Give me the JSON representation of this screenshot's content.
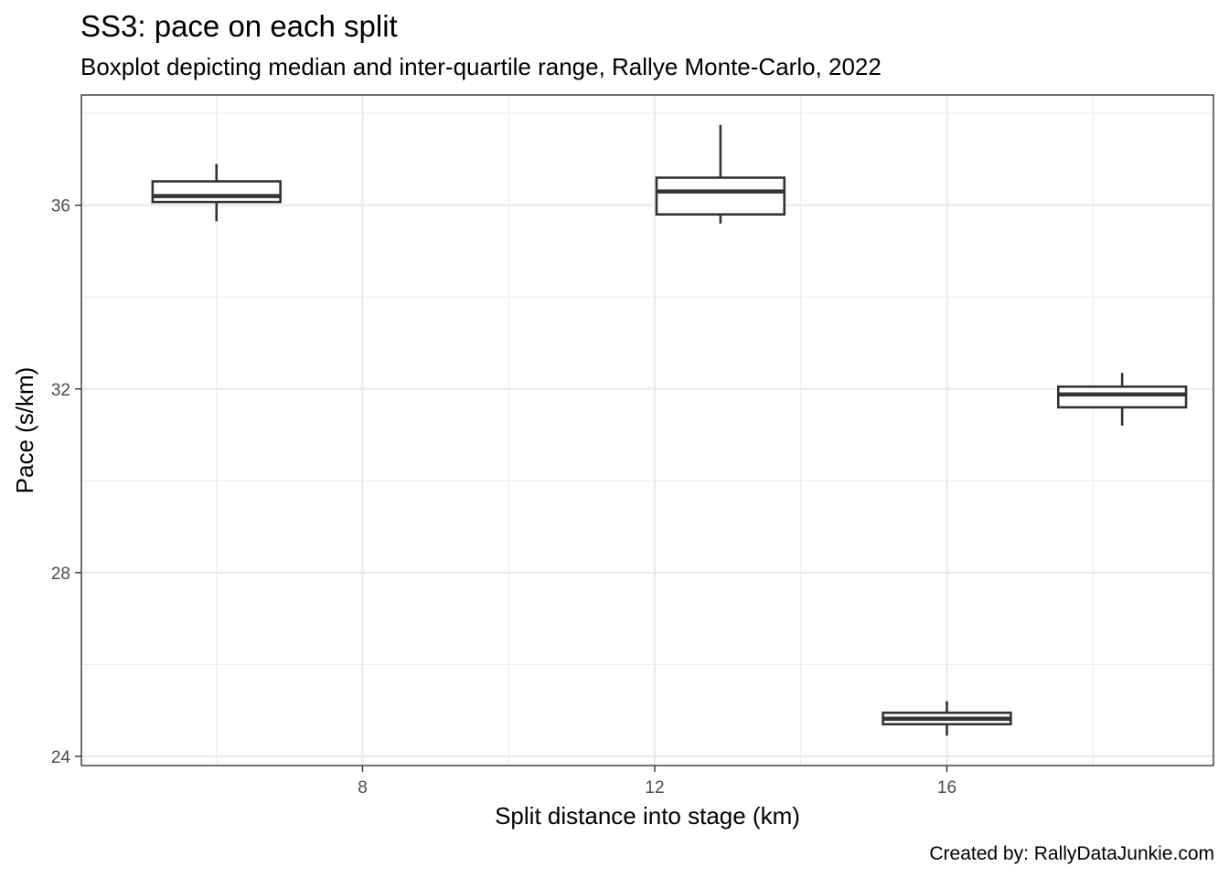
{
  "chart_data": {
    "type": "boxplot",
    "title": "SS3: pace on each split",
    "subtitle": "Boxplot depicting median and inter-quartile range, Rallye Monte-Carlo, 2022",
    "xlabel": "Split distance into stage (km)",
    "ylabel": "Pace (s/km)",
    "caption": "Created by: RallyDataJunkie.com",
    "xlim": [
      4.15,
      19.65
    ],
    "ylim": [
      23.8,
      38.4
    ],
    "x_ticks": [
      8,
      12,
      16
    ],
    "y_ticks": [
      24,
      28,
      32,
      36
    ],
    "x_minor": [
      6,
      10,
      14,
      18
    ],
    "y_minor": [
      26,
      30,
      34,
      38
    ],
    "grid": true,
    "boxes": [
      {
        "x": 6.0,
        "width": 1.75,
        "whisker_low": 35.65,
        "q1": 36.07,
        "median": 36.2,
        "q3": 36.52,
        "whisker_high": 36.9
      },
      {
        "x": 12.9,
        "width": 1.75,
        "whisker_low": 35.6,
        "q1": 35.8,
        "median": 36.3,
        "q3": 36.6,
        "whisker_high": 37.75
      },
      {
        "x": 16.0,
        "width": 1.75,
        "whisker_low": 24.45,
        "q1": 24.7,
        "median": 24.82,
        "q3": 24.95,
        "whisker_high": 25.2
      },
      {
        "x": 18.4,
        "width": 1.75,
        "whisker_low": 31.2,
        "q1": 31.6,
        "median": 31.88,
        "q3": 32.05,
        "whisker_high": 32.35
      }
    ]
  }
}
